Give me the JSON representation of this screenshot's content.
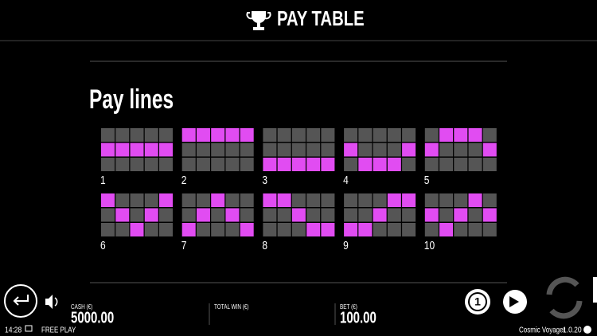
{
  "header": {
    "title": "PAY TABLE"
  },
  "section": {
    "title": "Pay lines"
  },
  "paylines": [
    {
      "label": "1",
      "rows": [
        1,
        1,
        1,
        1,
        1
      ]
    },
    {
      "label": "2",
      "rows": [
        0,
        0,
        0,
        0,
        0
      ]
    },
    {
      "label": "3",
      "rows": [
        2,
        2,
        2,
        2,
        2
      ]
    },
    {
      "label": "4",
      "rows": [
        1,
        2,
        2,
        2,
        1
      ]
    },
    {
      "label": "5",
      "rows": [
        1,
        0,
        0,
        0,
        1
      ]
    },
    {
      "label": "6",
      "rows": [
        0,
        1,
        2,
        1,
        0
      ]
    },
    {
      "label": "7",
      "rows": [
        2,
        1,
        0,
        1,
        2
      ]
    },
    {
      "label": "8",
      "rows": [
        0,
        0,
        1,
        2,
        2
      ]
    },
    {
      "label": "9",
      "rows": [
        2,
        2,
        1,
        0,
        0
      ]
    },
    {
      "label": "10",
      "rows": [
        1,
        2,
        1,
        0,
        1
      ]
    }
  ],
  "status_bar": {
    "cash_label": "CASH (€)",
    "cash_value": "5000.00",
    "total_win_label": "TOTAL WIN (€)",
    "bet_label": "BET (€)",
    "bet_value": "100.00"
  },
  "footer": {
    "time": "14:28",
    "mode": "FREE PLAY",
    "game_name": "Cosmic Voyager",
    "version": "1.0.20"
  }
}
